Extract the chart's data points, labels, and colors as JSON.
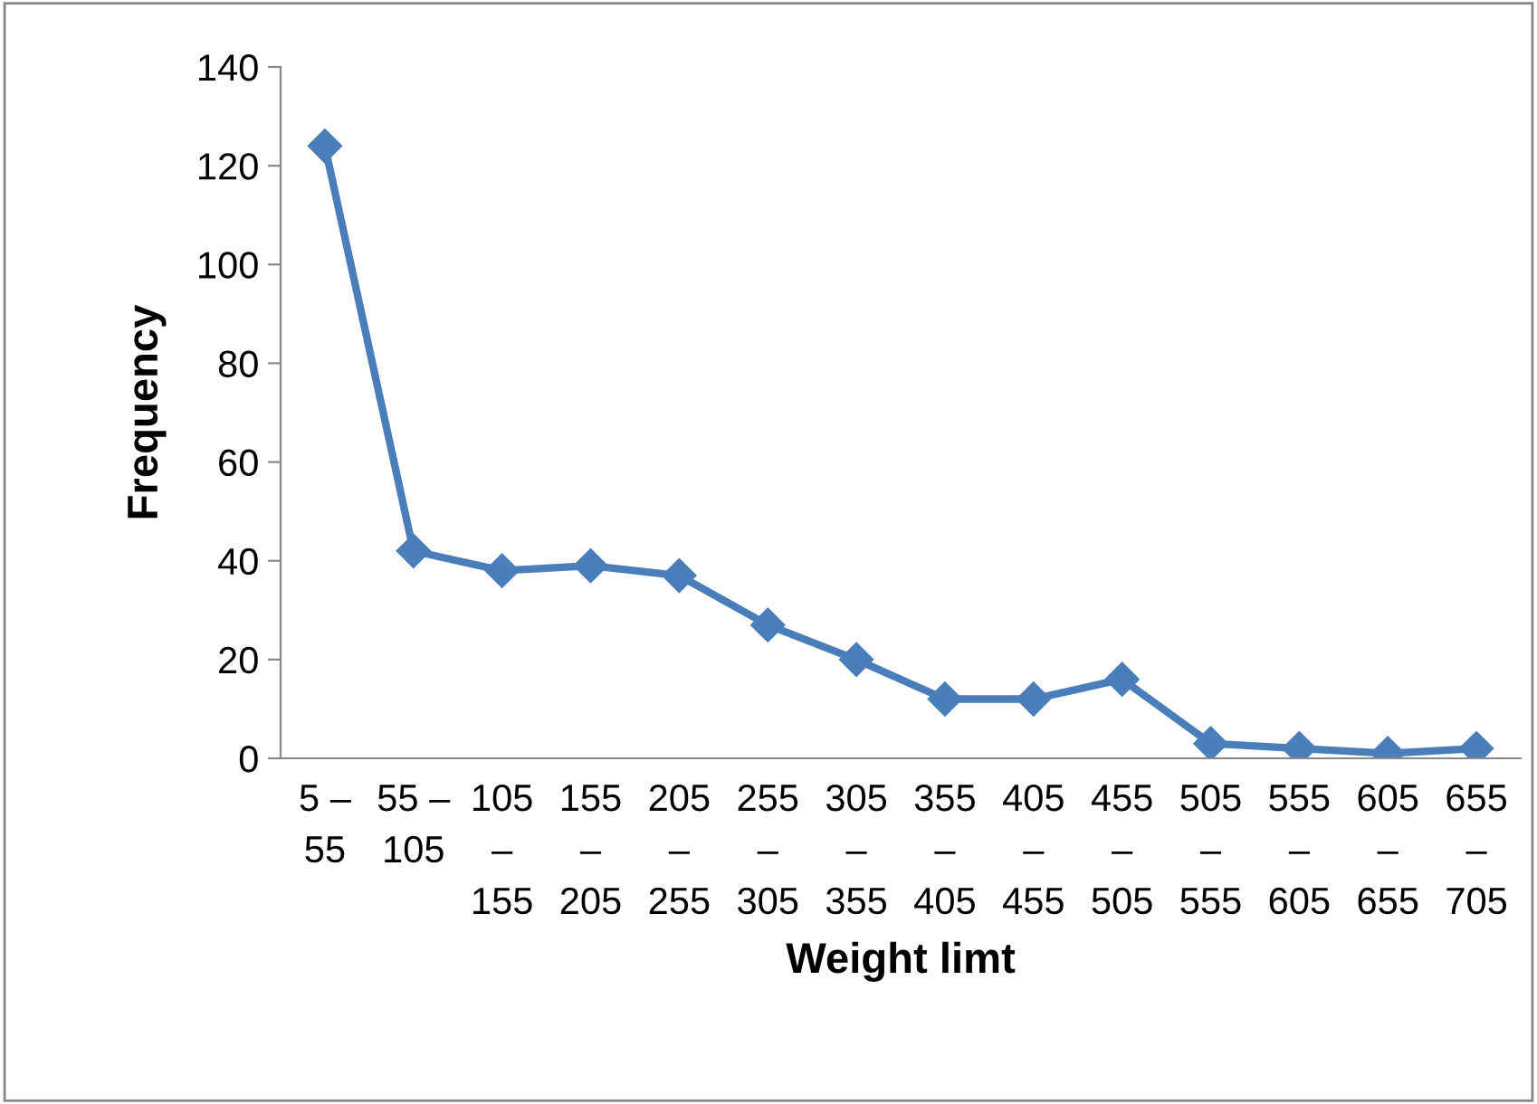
{
  "chart_data": {
    "type": "line",
    "xlabel": "Weight limt",
    "ylabel": "Frequency",
    "categories": [
      "5 –\n55",
      "55 –\n105",
      "105\n–\n155",
      "155\n–\n205",
      "205\n–\n255",
      "255\n–\n305",
      "305\n–\n355",
      "355\n–\n405",
      "405\n–\n455",
      "455\n–\n505",
      "505\n–\n555",
      "555\n–\n605",
      "605\n–\n655",
      "655\n–\n705"
    ],
    "series": [
      {
        "color": "#4a7ebb",
        "values": [
          124,
          42,
          38,
          39,
          37,
          27,
          20,
          12,
          12,
          16,
          3,
          2,
          1,
          2
        ]
      }
    ],
    "ylim": [
      0,
      140
    ],
    "yticks": [
      0,
      20,
      40,
      60,
      80,
      100,
      120,
      140
    ],
    "grid": false,
    "legend": false,
    "marker": "diamond",
    "line_style": "solid"
  }
}
